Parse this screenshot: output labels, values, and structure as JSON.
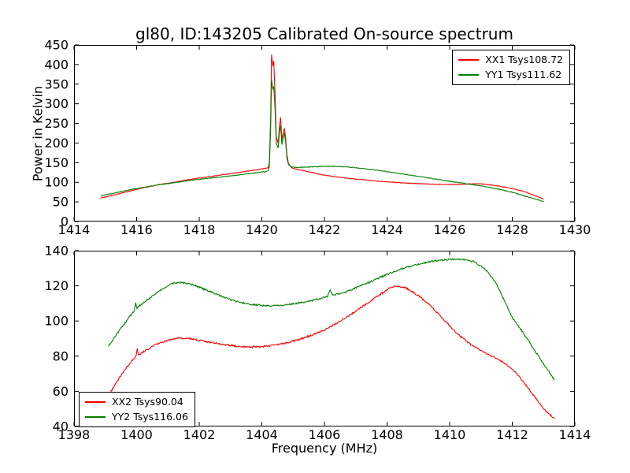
{
  "figure": {
    "title": "gl80, ID:143205 Calibrated On-source spectrum",
    "xlabel": "Frequency (MHz)",
    "ylabel": "Power in Kelvin",
    "background": "#ffffff",
    "frame_color": "#000000",
    "text_color": "#000000"
  },
  "chart_data": [
    {
      "type": "line",
      "position": "top",
      "xlim": [
        1414,
        1430
      ],
      "ylim": [
        0,
        450
      ],
      "xticks": [
        1414,
        1416,
        1418,
        1420,
        1422,
        1424,
        1426,
        1428,
        1430
      ],
      "yticks": [
        0,
        50,
        100,
        150,
        200,
        250,
        300,
        350,
        400,
        450
      ],
      "grid": false,
      "legend": {
        "position": "upper right",
        "entries": [
          {
            "label": "XX1 Tsys108.72",
            "color": "#ff0000"
          },
          {
            "label": "YY1 Tsys111.62",
            "color": "#008000"
          }
        ]
      },
      "series": [
        {
          "name": "XX1",
          "color": "#ff0000",
          "noise": 0.8,
          "points": [
            [
              1414.85,
              60
            ],
            [
              1415.2,
              66
            ],
            [
              1415.6,
              74
            ],
            [
              1416.0,
              82
            ],
            [
              1416.4,
              89
            ],
            [
              1416.8,
              95
            ],
            [
              1417.2,
              100
            ],
            [
              1417.6,
              106
            ],
            [
              1418.0,
              111
            ],
            [
              1418.4,
              115
            ],
            [
              1418.8,
              120
            ],
            [
              1419.2,
              124
            ],
            [
              1419.6,
              129
            ],
            [
              1420.0,
              134
            ],
            [
              1420.1,
              135.5
            ],
            [
              1420.2,
              137
            ],
            [
              1420.24,
              150
            ],
            [
              1420.28,
              260
            ],
            [
              1420.31,
              425
            ],
            [
              1420.35,
              396
            ],
            [
              1420.38,
              409
            ],
            [
              1420.42,
              330
            ],
            [
              1420.46,
              215
            ],
            [
              1420.52,
              200
            ],
            [
              1420.56,
              240
            ],
            [
              1420.6,
              266
            ],
            [
              1420.64,
              208
            ],
            [
              1420.68,
              225
            ],
            [
              1420.72,
              238
            ],
            [
              1420.76,
              214
            ],
            [
              1420.8,
              170
            ],
            [
              1420.85,
              148
            ],
            [
              1420.95,
              137
            ],
            [
              1421.1,
              133
            ],
            [
              1421.5,
              127
            ],
            [
              1422.0,
              118
            ],
            [
              1422.5,
              112.5
            ],
            [
              1423.0,
              108
            ],
            [
              1423.5,
              104.5
            ],
            [
              1424.0,
              101
            ],
            [
              1424.5,
              98.5
            ],
            [
              1425.0,
              96.5
            ],
            [
              1425.5,
              95
            ],
            [
              1426.0,
              94.5
            ],
            [
              1426.4,
              94.8
            ],
            [
              1426.8,
              96.5
            ],
            [
              1427.1,
              95.5
            ],
            [
              1427.5,
              91.5
            ],
            [
              1428.0,
              84
            ],
            [
              1428.4,
              76
            ],
            [
              1428.8,
              64
            ],
            [
              1429.0,
              57
            ]
          ]
        },
        {
          "name": "YY1",
          "color": "#008000",
          "noise": 0.8,
          "points": [
            [
              1414.85,
              66
            ],
            [
              1415.2,
              71
            ],
            [
              1415.6,
              78
            ],
            [
              1416.0,
              84
            ],
            [
              1416.4,
              89.5
            ],
            [
              1416.8,
              94.5
            ],
            [
              1417.2,
              99
            ],
            [
              1417.6,
              103.5
            ],
            [
              1418.0,
              107.5
            ],
            [
              1418.4,
              111
            ],
            [
              1418.8,
              114.5
            ],
            [
              1419.2,
              118
            ],
            [
              1419.6,
              122
            ],
            [
              1420.0,
              126
            ],
            [
              1420.1,
              127
            ],
            [
              1420.2,
              129
            ],
            [
              1420.24,
              140
            ],
            [
              1420.28,
              230
            ],
            [
              1420.31,
              362
            ],
            [
              1420.35,
              338
            ],
            [
              1420.38,
              344
            ],
            [
              1420.42,
              290
            ],
            [
              1420.46,
              200
            ],
            [
              1420.52,
              188
            ],
            [
              1420.56,
              225
            ],
            [
              1420.6,
              246
            ],
            [
              1420.64,
              196
            ],
            [
              1420.68,
              212
            ],
            [
              1420.72,
              226
            ],
            [
              1420.76,
              204
            ],
            [
              1420.8,
              162
            ],
            [
              1420.85,
              145
            ],
            [
              1420.95,
              139
            ],
            [
              1421.1,
              138
            ],
            [
              1421.5,
              139
            ],
            [
              1422.0,
              140.5
            ],
            [
              1422.4,
              140.5
            ],
            [
              1422.8,
              138.5
            ],
            [
              1423.2,
              135.5
            ],
            [
              1423.6,
              131.5
            ],
            [
              1424.0,
              127
            ],
            [
              1424.4,
              122.5
            ],
            [
              1424.8,
              117.5
            ],
            [
              1425.2,
              112.5
            ],
            [
              1425.6,
              107.5
            ],
            [
              1426.0,
              102.5
            ],
            [
              1426.4,
              98
            ],
            [
              1426.8,
              93
            ],
            [
              1427.2,
              88
            ],
            [
              1427.6,
              82
            ],
            [
              1428.0,
              74.5
            ],
            [
              1428.4,
              65
            ],
            [
              1428.8,
              56
            ],
            [
              1429.0,
              51
            ]
          ]
        }
      ]
    },
    {
      "type": "line",
      "position": "bottom",
      "xlim": [
        1398,
        1414
      ],
      "ylim": [
        40,
        140
      ],
      "xticks": [
        1398,
        1400,
        1402,
        1404,
        1406,
        1408,
        1410,
        1412,
        1414
      ],
      "yticks": [
        40,
        60,
        80,
        100,
        120,
        140
      ],
      "grid": false,
      "legend": {
        "position": "lower left",
        "entries": [
          {
            "label": "XX2 Tsys90.04",
            "color": "#ff0000"
          },
          {
            "label": "YY2 Tsys116.06",
            "color": "#008000"
          }
        ]
      },
      "series": [
        {
          "name": "XX2",
          "color": "#ff0000",
          "noise": 0.45,
          "points": [
            [
              1399.15,
              59
            ],
            [
              1399.35,
              65
            ],
            [
              1399.6,
              71.5
            ],
            [
              1399.85,
              77.5
            ],
            [
              1399.98,
              80
            ],
            [
              1400.02,
              84.5
            ],
            [
              1400.06,
              80.5
            ],
            [
              1400.3,
              83.5
            ],
            [
              1400.6,
              86.5
            ],
            [
              1401.0,
              89
            ],
            [
              1401.3,
              90.3
            ],
            [
              1401.7,
              90
            ],
            [
              1402.0,
              89
            ],
            [
              1402.4,
              87.8
            ],
            [
              1402.8,
              86.5
            ],
            [
              1403.2,
              85.7
            ],
            [
              1403.6,
              85.2
            ],
            [
              1404.0,
              85.4
            ],
            [
              1404.4,
              86.2
            ],
            [
              1404.8,
              87.6
            ],
            [
              1405.2,
              89.5
            ],
            [
              1405.6,
              92
            ],
            [
              1406.0,
              95
            ],
            [
              1406.4,
              98.8
            ],
            [
              1406.8,
              103.2
            ],
            [
              1407.2,
              108
            ],
            [
              1407.6,
              113
            ],
            [
              1407.9,
              116.5
            ],
            [
              1408.1,
              119
            ],
            [
              1408.3,
              120
            ],
            [
              1408.6,
              118.8
            ],
            [
              1409.0,
              114.5
            ],
            [
              1409.4,
              108.5
            ],
            [
              1409.8,
              101
            ],
            [
              1410.2,
              93.5
            ],
            [
              1410.6,
              87.5
            ],
            [
              1411.0,
              83
            ],
            [
              1411.4,
              79.5
            ],
            [
              1411.8,
              75.5
            ],
            [
              1412.1,
              71
            ],
            [
              1412.5,
              62
            ],
            [
              1413.0,
              50
            ],
            [
              1413.35,
              44.5
            ]
          ]
        },
        {
          "name": "YY2",
          "color": "#008000",
          "noise": 0.45,
          "points": [
            [
              1399.1,
              85.5
            ],
            [
              1399.3,
              91
            ],
            [
              1399.55,
              97
            ],
            [
              1399.8,
              103
            ],
            [
              1399.93,
              106
            ],
            [
              1399.97,
              110.5
            ],
            [
              1400.01,
              107.5
            ],
            [
              1400.3,
              111.5
            ],
            [
              1400.6,
              115.5
            ],
            [
              1400.9,
              119
            ],
            [
              1401.1,
              121.3
            ],
            [
              1401.35,
              122
            ],
            [
              1401.6,
              121.5
            ],
            [
              1401.9,
              120
            ],
            [
              1402.2,
              117.8
            ],
            [
              1402.6,
              114.8
            ],
            [
              1403.0,
              112
            ],
            [
              1403.4,
              110.3
            ],
            [
              1403.8,
              109.2
            ],
            [
              1404.2,
              108.6
            ],
            [
              1404.6,
              108.9
            ],
            [
              1405.0,
              109.8
            ],
            [
              1405.4,
              110.8
            ],
            [
              1405.8,
              112.5
            ],
            [
              1406.1,
              114
            ],
            [
              1406.18,
              117.8
            ],
            [
              1406.26,
              114.8
            ],
            [
              1406.6,
              116
            ],
            [
              1407.0,
              118.8
            ],
            [
              1407.4,
              121.8
            ],
            [
              1407.8,
              125
            ],
            [
              1408.2,
              128
            ],
            [
              1408.6,
              130.5
            ],
            [
              1409.0,
              132.3
            ],
            [
              1409.4,
              133.8
            ],
            [
              1409.8,
              134.8
            ],
            [
              1410.2,
              135.2
            ],
            [
              1410.5,
              134.8
            ],
            [
              1410.8,
              133.6
            ],
            [
              1411.1,
              130
            ],
            [
              1411.3,
              126
            ],
            [
              1411.5,
              121
            ],
            [
              1412.0,
              102
            ],
            [
              1412.4,
              92
            ],
            [
              1412.8,
              81
            ],
            [
              1413.1,
              73
            ],
            [
              1413.35,
              66.5
            ]
          ]
        }
      ]
    }
  ]
}
